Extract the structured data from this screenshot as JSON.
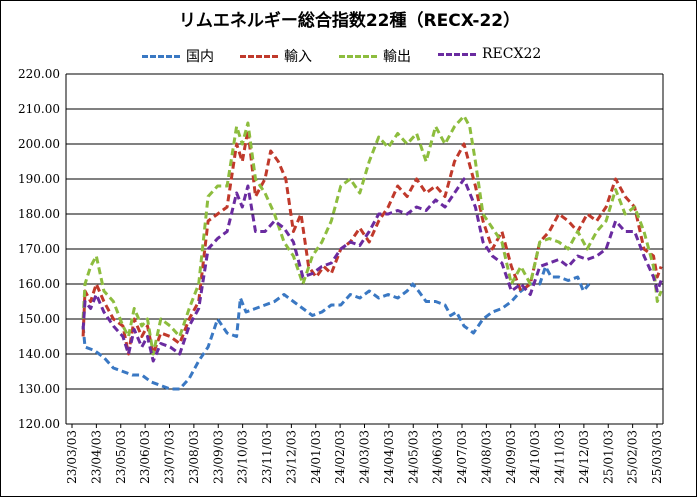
{
  "chart_data": {
    "type": "line",
    "title": "リムエネルギー総合指数22種（RECX-22）",
    "ylim": [
      120,
      220
    ],
    "yticks": [
      "120.00",
      "130.00",
      "140.00",
      "150.00",
      "160.00",
      "170.00",
      "180.00",
      "190.00",
      "200.00",
      "210.00",
      "220.00"
    ],
    "xticks": [
      "23/03/03",
      "23/04/03",
      "23/05/03",
      "23/06/03",
      "23/07/03",
      "23/08/03",
      "23/09/03",
      "23/10/03",
      "23/11/03",
      "23/12/03",
      "24/01/03",
      "24/02/03",
      "24/03/03",
      "24/04/03",
      "24/05/03",
      "24/06/03",
      "24/07/03",
      "24/08/03",
      "24/09/03",
      "24/10/03",
      "24/11/03",
      "24/12/03",
      "25/01/03",
      "25/02/03",
      "25/03/03"
    ],
    "grid": true,
    "legend_position": "top",
    "series": [
      {
        "name": "国内",
        "color": "#3A78C3",
        "values": [
          [
            0.9,
            148
          ],
          [
            1,
            142
          ],
          [
            1.5,
            141
          ],
          [
            2,
            139
          ],
          [
            2.5,
            136
          ],
          [
            3,
            135
          ],
          [
            3.5,
            134
          ],
          [
            4,
            134
          ],
          [
            4.5,
            132
          ],
          [
            5,
            131
          ],
          [
            5.5,
            130
          ],
          [
            6,
            130
          ],
          [
            6.5,
            133
          ],
          [
            7,
            138
          ],
          [
            7.5,
            142
          ],
          [
            8,
            150
          ],
          [
            8.5,
            146
          ],
          [
            9,
            145
          ],
          [
            9.2,
            156
          ],
          [
            9.5,
            152
          ],
          [
            10,
            153
          ],
          [
            10.5,
            154
          ],
          [
            11,
            155
          ],
          [
            11.5,
            157
          ],
          [
            12,
            155
          ],
          [
            12.5,
            153
          ],
          [
            13,
            151
          ],
          [
            13.5,
            152
          ],
          [
            14,
            154
          ],
          [
            14.5,
            154
          ],
          [
            15,
            157
          ],
          [
            15.5,
            156
          ],
          [
            16,
            158
          ],
          [
            16.5,
            156
          ],
          [
            17,
            157
          ],
          [
            17.5,
            156
          ],
          [
            18,
            158
          ],
          [
            18.3,
            160
          ],
          [
            18.6,
            158
          ],
          [
            19,
            155
          ],
          [
            19.5,
            155
          ],
          [
            20,
            154
          ],
          [
            20.3,
            151
          ],
          [
            20.6,
            152
          ],
          [
            21,
            148
          ],
          [
            21.5,
            146
          ],
          [
            22,
            150
          ],
          [
            22.5,
            152
          ],
          [
            23,
            153
          ],
          [
            23.5,
            155
          ],
          [
            24,
            158
          ],
          [
            24.5,
            160
          ],
          [
            25,
            160
          ],
          [
            25.3,
            165
          ],
          [
            25.6,
            162
          ],
          [
            26,
            162
          ],
          [
            26.5,
            161
          ],
          [
            27,
            162
          ],
          [
            27.3,
            158
          ],
          [
            27.6,
            160
          ]
        ]
      },
      {
        "name": "輸入",
        "color": "#C0392B",
        "values": [
          [
            0.9,
            145
          ],
          [
            1,
            158
          ],
          [
            1.3,
            155
          ],
          [
            1.6,
            160
          ],
          [
            2,
            155
          ],
          [
            2.5,
            150
          ],
          [
            3,
            148
          ],
          [
            3.3,
            140
          ],
          [
            3.6,
            150
          ],
          [
            4,
            145
          ],
          [
            4.3,
            148
          ],
          [
            4.6,
            140
          ],
          [
            5,
            146
          ],
          [
            5.5,
            145
          ],
          [
            6,
            143
          ],
          [
            6.5,
            150
          ],
          [
            7,
            155
          ],
          [
            7.5,
            178
          ],
          [
            8,
            180
          ],
          [
            8.5,
            182
          ],
          [
            9,
            200
          ],
          [
            9.3,
            195
          ],
          [
            9.6,
            204
          ],
          [
            10,
            185
          ],
          [
            10.5,
            190
          ],
          [
            10.8,
            198
          ],
          [
            11.2,
            195
          ],
          [
            11.6,
            190
          ],
          [
            12,
            175
          ],
          [
            12.4,
            180
          ],
          [
            12.8,
            165
          ],
          [
            13.2,
            162
          ],
          [
            13.6,
            165
          ],
          [
            14,
            163
          ],
          [
            14.5,
            170
          ],
          [
            15,
            172
          ],
          [
            15.5,
            176
          ],
          [
            16,
            172
          ],
          [
            16.5,
            178
          ],
          [
            17,
            182
          ],
          [
            17.5,
            188
          ],
          [
            18,
            185
          ],
          [
            18.5,
            190
          ],
          [
            19,
            186
          ],
          [
            19.5,
            188
          ],
          [
            20,
            185
          ],
          [
            20.5,
            195
          ],
          [
            21,
            200
          ],
          [
            21.3,
            194
          ],
          [
            21.6,
            188
          ],
          [
            22,
            178
          ],
          [
            22.5,
            170
          ],
          [
            23,
            175
          ],
          [
            23.5,
            165
          ],
          [
            24,
            158
          ],
          [
            24.5,
            160
          ],
          [
            25,
            172
          ],
          [
            25.5,
            175
          ],
          [
            26,
            180
          ],
          [
            26.5,
            178
          ],
          [
            27,
            175
          ],
          [
            27.5,
            180
          ],
          [
            28,
            178
          ],
          [
            28.5,
            182
          ],
          [
            29,
            190
          ],
          [
            29.5,
            185
          ],
          [
            30,
            182
          ],
          [
            30.5,
            170
          ],
          [
            31,
            168
          ],
          [
            31.2,
            162
          ],
          [
            31.4,
            165
          ]
        ]
      },
      {
        "name": "輸出",
        "color": "#8DBD3E",
        "values": [
          [
            0.9,
            150
          ],
          [
            1,
            160
          ],
          [
            1.3,
            165
          ],
          [
            1.6,
            168
          ],
          [
            2,
            158
          ],
          [
            2.5,
            155
          ],
          [
            3,
            148
          ],
          [
            3.3,
            145
          ],
          [
            3.6,
            153
          ],
          [
            4,
            148
          ],
          [
            4.3,
            150
          ],
          [
            4.6,
            140
          ],
          [
            5,
            150
          ],
          [
            5.5,
            148
          ],
          [
            6,
            145
          ],
          [
            6.5,
            153
          ],
          [
            7,
            160
          ],
          [
            7.5,
            185
          ],
          [
            8,
            188
          ],
          [
            8.5,
            188
          ],
          [
            9,
            205
          ],
          [
            9.3,
            200
          ],
          [
            9.6,
            206
          ],
          [
            10,
            190
          ],
          [
            10.5,
            186
          ],
          [
            11,
            180
          ],
          [
            11.5,
            172
          ],
          [
            12,
            168
          ],
          [
            12.5,
            160
          ],
          [
            13,
            168
          ],
          [
            13.5,
            172
          ],
          [
            14,
            178
          ],
          [
            14.5,
            188
          ],
          [
            15,
            190
          ],
          [
            15.5,
            186
          ],
          [
            16,
            195
          ],
          [
            16.5,
            202
          ],
          [
            17,
            199
          ],
          [
            17.5,
            203
          ],
          [
            18,
            200
          ],
          [
            18.5,
            203
          ],
          [
            19,
            195
          ],
          [
            19.5,
            205
          ],
          [
            20,
            200
          ],
          [
            20.5,
            205
          ],
          [
            21,
            208
          ],
          [
            21.3,
            205
          ],
          [
            21.6,
            195
          ],
          [
            22,
            180
          ],
          [
            22.5,
            176
          ],
          [
            23,
            172
          ],
          [
            23.5,
            160
          ],
          [
            24,
            165
          ],
          [
            24.5,
            160
          ],
          [
            25,
            172
          ],
          [
            25.5,
            173
          ],
          [
            26,
            172
          ],
          [
            26.5,
            170
          ],
          [
            27,
            175
          ],
          [
            27.5,
            170
          ],
          [
            28,
            175
          ],
          [
            28.5,
            178
          ],
          [
            29,
            187
          ],
          [
            29.5,
            180
          ],
          [
            30,
            182
          ],
          [
            30.5,
            175
          ],
          [
            31,
            165
          ],
          [
            31.2,
            155
          ],
          [
            31.4,
            158
          ]
        ]
      },
      {
        "name": "RECX22",
        "color": "#6A2BA0",
        "values": [
          [
            0.9,
            147
          ],
          [
            1,
            155
          ],
          [
            1.3,
            153
          ],
          [
            1.6,
            157
          ],
          [
            2,
            152
          ],
          [
            2.5,
            148
          ],
          [
            3,
            145
          ],
          [
            3.3,
            140
          ],
          [
            3.6,
            147
          ],
          [
            4,
            142
          ],
          [
            4.3,
            145
          ],
          [
            4.6,
            138
          ],
          [
            5,
            143
          ],
          [
            5.5,
            142
          ],
          [
            6,
            140
          ],
          [
            6.5,
            148
          ],
          [
            7,
            153
          ],
          [
            7.5,
            170
          ],
          [
            8,
            173
          ],
          [
            8.5,
            175
          ],
          [
            9,
            186
          ],
          [
            9.3,
            182
          ],
          [
            9.6,
            188
          ],
          [
            10,
            175
          ],
          [
            10.5,
            175
          ],
          [
            11,
            178
          ],
          [
            11.5,
            176
          ],
          [
            12,
            172
          ],
          [
            12.5,
            162
          ],
          [
            13,
            163
          ],
          [
            13.5,
            165
          ],
          [
            14,
            166
          ],
          [
            14.5,
            170
          ],
          [
            15,
            172
          ],
          [
            15.5,
            171
          ],
          [
            16,
            175
          ],
          [
            16.5,
            180
          ],
          [
            17,
            180
          ],
          [
            17.5,
            181
          ],
          [
            18,
            180
          ],
          [
            18.5,
            182
          ],
          [
            19,
            181
          ],
          [
            19.5,
            184
          ],
          [
            20,
            182
          ],
          [
            20.5,
            186
          ],
          [
            21,
            190
          ],
          [
            21.3,
            186
          ],
          [
            21.6,
            182
          ],
          [
            22,
            172
          ],
          [
            22.5,
            168
          ],
          [
            23,
            166
          ],
          [
            23.5,
            158
          ],
          [
            24,
            160
          ],
          [
            24.5,
            157
          ],
          [
            25,
            165
          ],
          [
            25.5,
            166
          ],
          [
            26,
            167
          ],
          [
            26.5,
            165
          ],
          [
            27,
            168
          ],
          [
            27.5,
            167
          ],
          [
            28,
            168
          ],
          [
            28.5,
            170
          ],
          [
            29,
            178
          ],
          [
            29.5,
            175
          ],
          [
            30,
            175
          ],
          [
            30.5,
            168
          ],
          [
            31,
            162
          ],
          [
            31.2,
            158
          ],
          [
            31.4,
            161
          ]
        ]
      }
    ]
  }
}
